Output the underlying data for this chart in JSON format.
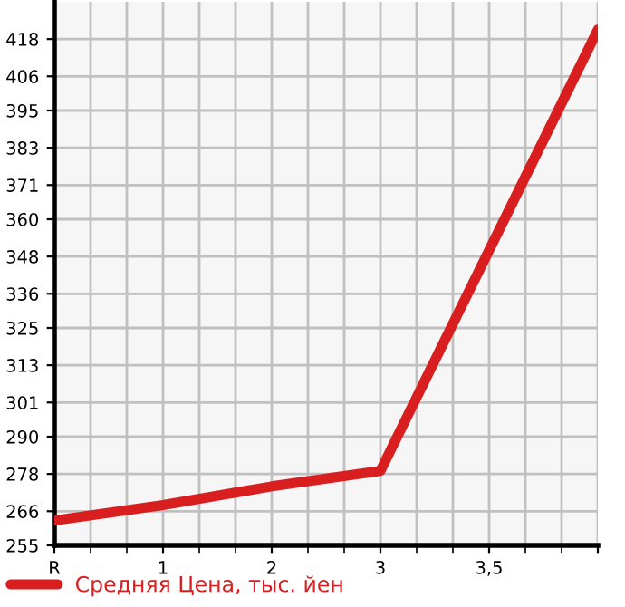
{
  "chart_data": {
    "type": "line",
    "categories": [
      "R",
      "1",
      "2",
      "3",
      "3,5",
      null
    ],
    "series": [
      {
        "name": "Средняя Цена, тыс. йен",
        "color": "#d81e1e",
        "values": [
          263,
          268,
          274,
          279,
          350,
          421
        ]
      }
    ],
    "ylim": [
      255,
      430
    ],
    "yticks": [
      255,
      266,
      278,
      290,
      301,
      313,
      325,
      336,
      348,
      360,
      371,
      383,
      395,
      406,
      418
    ],
    "grid": true,
    "legend": "bottom left",
    "marker": "none",
    "line_style": "solid"
  }
}
